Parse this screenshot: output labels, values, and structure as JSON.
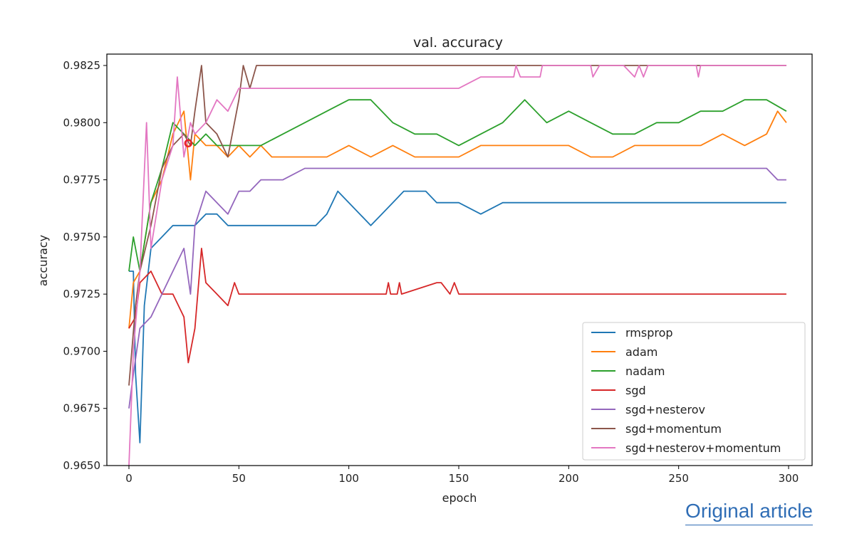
{
  "chart_data": {
    "type": "line",
    "title": "val. accuracy",
    "xlabel": "epoch",
    "ylabel": "accuracy",
    "xlim": [
      -7,
      307
    ],
    "ylim": [
      0.965,
      0.983
    ],
    "xticks": [
      0,
      50,
      100,
      150,
      200,
      250,
      300
    ],
    "xtick_labels": [
      "0",
      "50",
      "100",
      "150",
      "200",
      "250",
      "300"
    ],
    "yticks": [
      0.965,
      0.9675,
      0.97,
      0.9725,
      0.975,
      0.9775,
      0.98,
      0.9825
    ],
    "ytick_labels": [
      "0.9650",
      "0.9675",
      "0.9700",
      "0.9725",
      "0.9750",
      "0.9775",
      "0.9800",
      "0.9825"
    ],
    "grid": false,
    "legend_position": "lower right",
    "series": [
      {
        "name": "rmsprop",
        "color": "#1f77b4",
        "x": [
          0,
          2,
          3,
          5,
          7,
          10,
          15,
          20,
          25,
          30,
          35,
          40,
          45,
          50,
          55,
          60,
          65,
          70,
          75,
          80,
          85,
          90,
          95,
          100,
          105,
          110,
          115,
          120,
          125,
          130,
          135,
          140,
          145,
          150,
          160,
          170,
          180,
          190,
          200,
          210,
          220,
          230,
          240,
          250,
          260,
          270,
          280,
          290,
          299
        ],
        "values": [
          0.9735,
          0.9735,
          0.969,
          0.966,
          0.972,
          0.9745,
          0.975,
          0.9755,
          0.9755,
          0.9755,
          0.976,
          0.976,
          0.9755,
          0.9755,
          0.9755,
          0.9755,
          0.9755,
          0.9755,
          0.9755,
          0.9755,
          0.9755,
          0.976,
          0.977,
          0.9765,
          0.976,
          0.9755,
          0.976,
          0.9765,
          0.977,
          0.977,
          0.977,
          0.9765,
          0.9765,
          0.9765,
          0.976,
          0.9765,
          0.9765,
          0.9765,
          0.9765,
          0.9765,
          0.9765,
          0.9765,
          0.9765,
          0.9765,
          0.9765,
          0.9765,
          0.9765,
          0.9765,
          0.9765
        ]
      },
      {
        "name": "adam",
        "color": "#ff7f0e",
        "x": [
          0,
          2,
          5,
          10,
          15,
          20,
          25,
          28,
          30,
          35,
          40,
          45,
          50,
          55,
          60,
          65,
          70,
          80,
          90,
          100,
          110,
          120,
          130,
          140,
          150,
          160,
          170,
          180,
          190,
          200,
          210,
          220,
          230,
          240,
          250,
          260,
          270,
          280,
          290,
          295,
          299
        ],
        "values": [
          0.971,
          0.973,
          0.9735,
          0.9765,
          0.9775,
          0.9795,
          0.9805,
          0.9775,
          0.9795,
          0.979,
          0.979,
          0.9785,
          0.979,
          0.9785,
          0.979,
          0.9785,
          0.9785,
          0.9785,
          0.9785,
          0.979,
          0.9785,
          0.979,
          0.9785,
          0.9785,
          0.9785,
          0.979,
          0.979,
          0.979,
          0.979,
          0.979,
          0.9785,
          0.9785,
          0.979,
          0.979,
          0.979,
          0.979,
          0.9795,
          0.979,
          0.9795,
          0.9805,
          0.98
        ]
      },
      {
        "name": "nadam",
        "color": "#2ca02c",
        "x": [
          0,
          2,
          5,
          10,
          15,
          20,
          25,
          30,
          35,
          40,
          50,
          60,
          70,
          80,
          90,
          100,
          110,
          120,
          130,
          140,
          150,
          160,
          170,
          180,
          190,
          200,
          210,
          220,
          230,
          240,
          250,
          260,
          270,
          280,
          290,
          299
        ],
        "values": [
          0.9735,
          0.975,
          0.9735,
          0.9765,
          0.978,
          0.98,
          0.9795,
          0.979,
          0.9795,
          0.979,
          0.979,
          0.979,
          0.9795,
          0.98,
          0.9805,
          0.981,
          0.981,
          0.98,
          0.9795,
          0.9795,
          0.979,
          0.9795,
          0.98,
          0.981,
          0.98,
          0.9805,
          0.98,
          0.9795,
          0.9795,
          0.98,
          0.98,
          0.9805,
          0.9805,
          0.981,
          0.981,
          0.9805
        ]
      },
      {
        "name": "sgd",
        "color": "#d62728",
        "x": [
          0,
          3,
          5,
          10,
          15,
          20,
          25,
          27,
          30,
          33,
          35,
          40,
          45,
          48,
          50,
          60,
          80,
          100,
          117,
          118,
          119,
          122,
          123,
          124,
          140,
          142,
          146,
          148,
          150,
          170,
          200,
          250,
          299
        ],
        "values": [
          0.971,
          0.9715,
          0.973,
          0.9735,
          0.9725,
          0.9725,
          0.9715,
          0.9695,
          0.971,
          0.9745,
          0.973,
          0.9725,
          0.972,
          0.973,
          0.9725,
          0.9725,
          0.9725,
          0.9725,
          0.9725,
          0.973,
          0.9725,
          0.9725,
          0.973,
          0.9725,
          0.973,
          0.973,
          0.9725,
          0.973,
          0.9725,
          0.9725,
          0.9725,
          0.9725,
          0.9725
        ]
      },
      {
        "name": "sgd+nesterov",
        "color": "#9467bd",
        "x": [
          0,
          2,
          5,
          10,
          15,
          20,
          25,
          28,
          30,
          35,
          40,
          45,
          50,
          55,
          60,
          65,
          70,
          80,
          90,
          100,
          150,
          200,
          250,
          285,
          290,
          295,
          299
        ],
        "values": [
          0.9675,
          0.969,
          0.971,
          0.9715,
          0.9725,
          0.9735,
          0.9745,
          0.9725,
          0.9755,
          0.977,
          0.9765,
          0.976,
          0.977,
          0.977,
          0.9775,
          0.9775,
          0.9775,
          0.978,
          0.978,
          0.978,
          0.978,
          0.978,
          0.978,
          0.978,
          0.978,
          0.9775,
          0.9775
        ]
      },
      {
        "name": "sgd+momentum",
        "color": "#8c564b",
        "x": [
          0,
          3,
          5,
          10,
          15,
          20,
          25,
          28,
          30,
          33,
          35,
          40,
          45,
          50,
          52,
          55,
          58,
          60,
          80,
          100,
          150,
          200,
          250,
          299
        ],
        "values": [
          0.9685,
          0.972,
          0.9735,
          0.9755,
          0.978,
          0.979,
          0.9795,
          0.979,
          0.9805,
          0.9825,
          0.98,
          0.9795,
          0.9785,
          0.981,
          0.9825,
          0.9815,
          0.9825,
          0.9825,
          0.9825,
          0.9825,
          0.9825,
          0.9825,
          0.9825,
          0.9825
        ]
      },
      {
        "name": "sgd+nesterov+momentum",
        "color": "#e377c2",
        "x": [
          0,
          2,
          5,
          8,
          10,
          15,
          20,
          22,
          25,
          28,
          30,
          35,
          40,
          45,
          50,
          55,
          60,
          80,
          100,
          130,
          140,
          150,
          160,
          175,
          176,
          178,
          187,
          188,
          210,
          211,
          214,
          220,
          225,
          230,
          232,
          234,
          236,
          240,
          258,
          259,
          260,
          280,
          299
        ],
        "values": [
          0.965,
          0.97,
          0.9735,
          0.98,
          0.9745,
          0.9775,
          0.979,
          0.982,
          0.9785,
          0.98,
          0.9795,
          0.98,
          0.981,
          0.9805,
          0.9815,
          0.9815,
          0.9815,
          0.9815,
          0.9815,
          0.9815,
          0.9815,
          0.9815,
          0.982,
          0.982,
          0.9825,
          0.982,
          0.982,
          0.9825,
          0.9825,
          0.982,
          0.9825,
          0.9825,
          0.9825,
          0.982,
          0.9825,
          0.982,
          0.9825,
          0.9825,
          0.9825,
          0.982,
          0.9825,
          0.9825,
          0.9825
        ]
      }
    ],
    "marker": {
      "x": 27,
      "y": 0.9791,
      "color": "#e8232a"
    }
  },
  "footer": {
    "link_label": "Original article"
  }
}
